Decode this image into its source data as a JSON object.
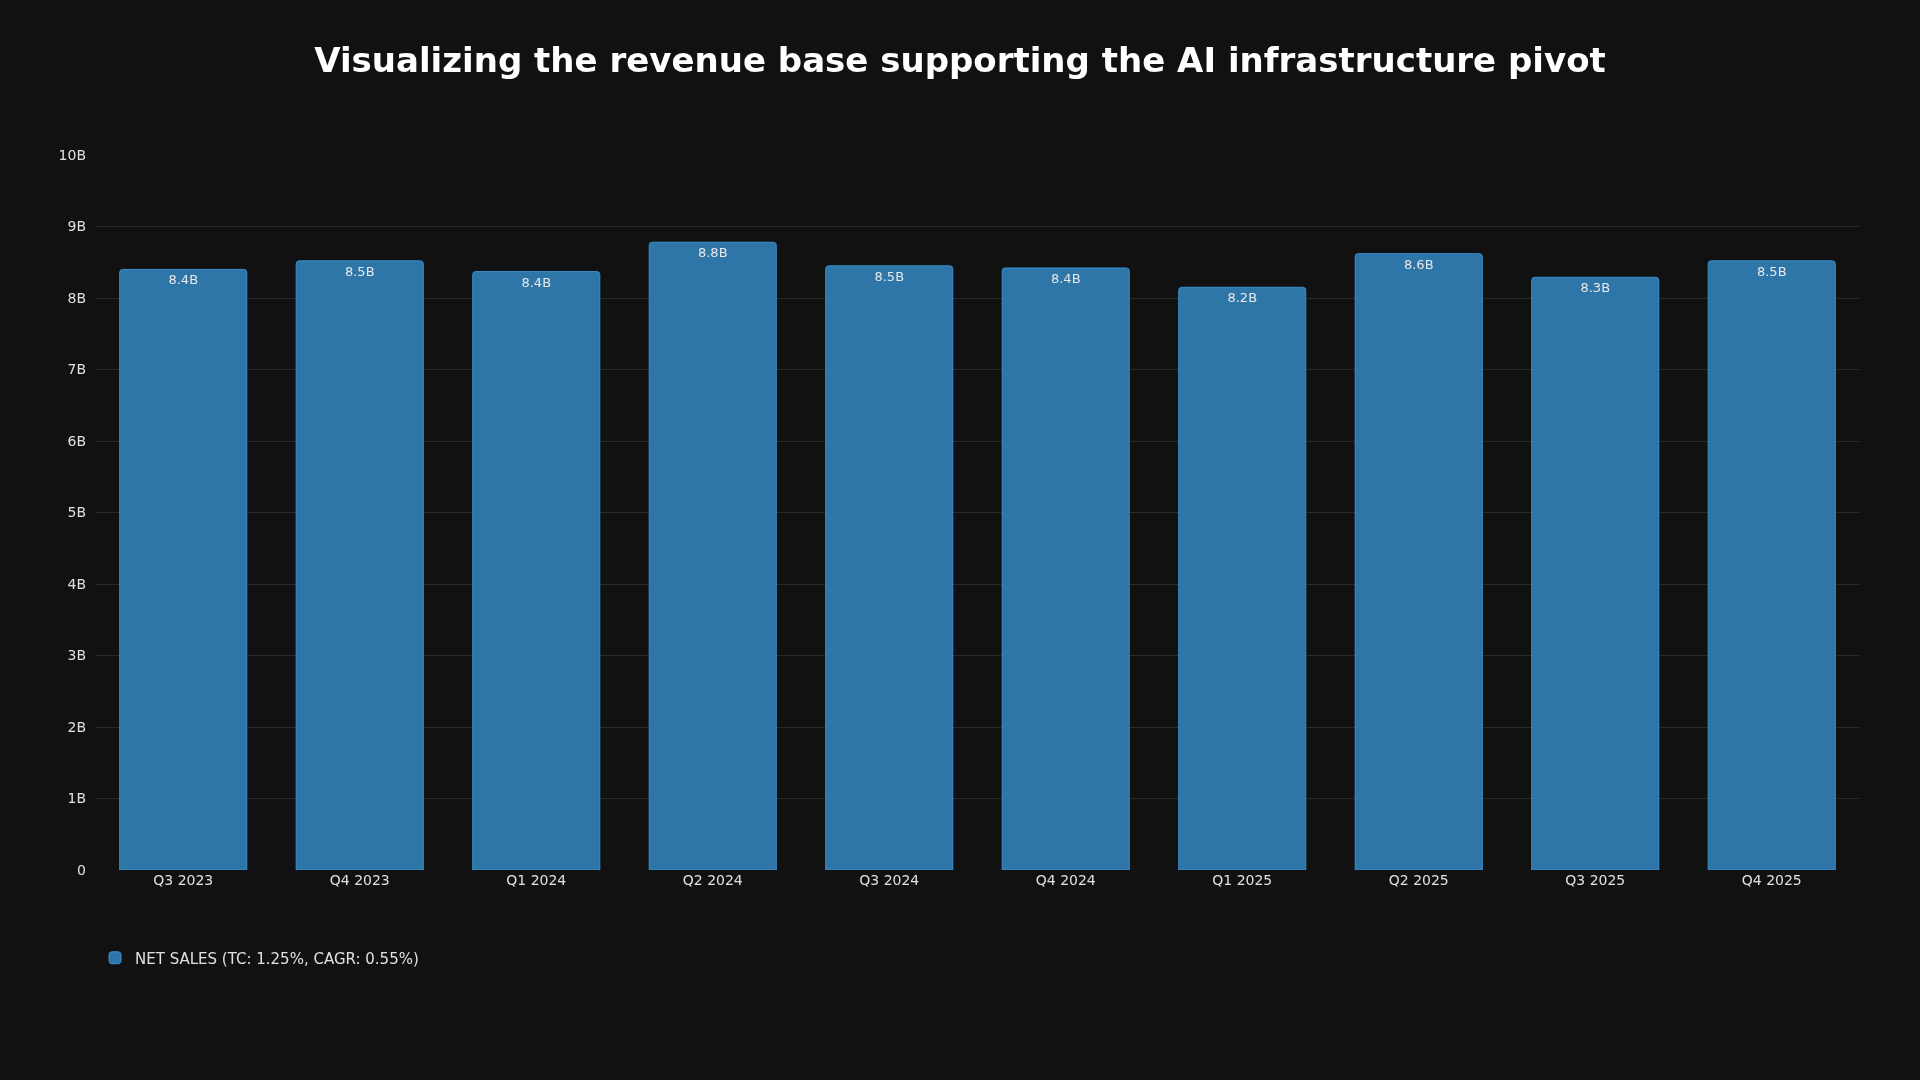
{
  "chart_data": {
    "type": "bar",
    "title": "Visualizing the revenue base supporting the AI infrastructure pivot",
    "categories": [
      "Q3 2023",
      "Q4 2023",
      "Q1 2024",
      "Q2 2024",
      "Q3 2024",
      "Q4 2024",
      "Q1 2025",
      "Q2 2025",
      "Q3 2025",
      "Q4 2025"
    ],
    "series": [
      {
        "name": "NET SALES (TC: 1.25%, CAGR: 0.55%)",
        "color": "#2e75a8",
        "values": [
          8.4,
          8.52,
          8.37,
          8.78,
          8.45,
          8.42,
          8.15,
          8.62,
          8.29,
          8.52
        ],
        "value_labels": [
          "8.4B",
          "8.5B",
          "8.4B",
          "8.8B",
          "8.5B",
          "8.4B",
          "8.2B",
          "8.6B",
          "8.3B",
          "8.5B"
        ]
      }
    ],
    "ylim": [
      0,
      10
    ],
    "yticks": [
      0,
      {
        "value": 1,
        "label": "1B"
      },
      {
        "value": 2,
        "label": "2B"
      },
      {
        "value": 3,
        "label": "3B"
      },
      {
        "value": 4,
        "label": "4B"
      },
      {
        "value": 5,
        "label": "5B"
      },
      {
        "value": 6,
        "label": "6B"
      },
      {
        "value": 7,
        "label": "7B"
      },
      {
        "value": 8,
        "label": "8B"
      },
      {
        "value": 9,
        "label": "9B"
      },
      {
        "value": 10,
        "label": "10B"
      }
    ],
    "grid": "y",
    "legend": "bottom left"
  }
}
